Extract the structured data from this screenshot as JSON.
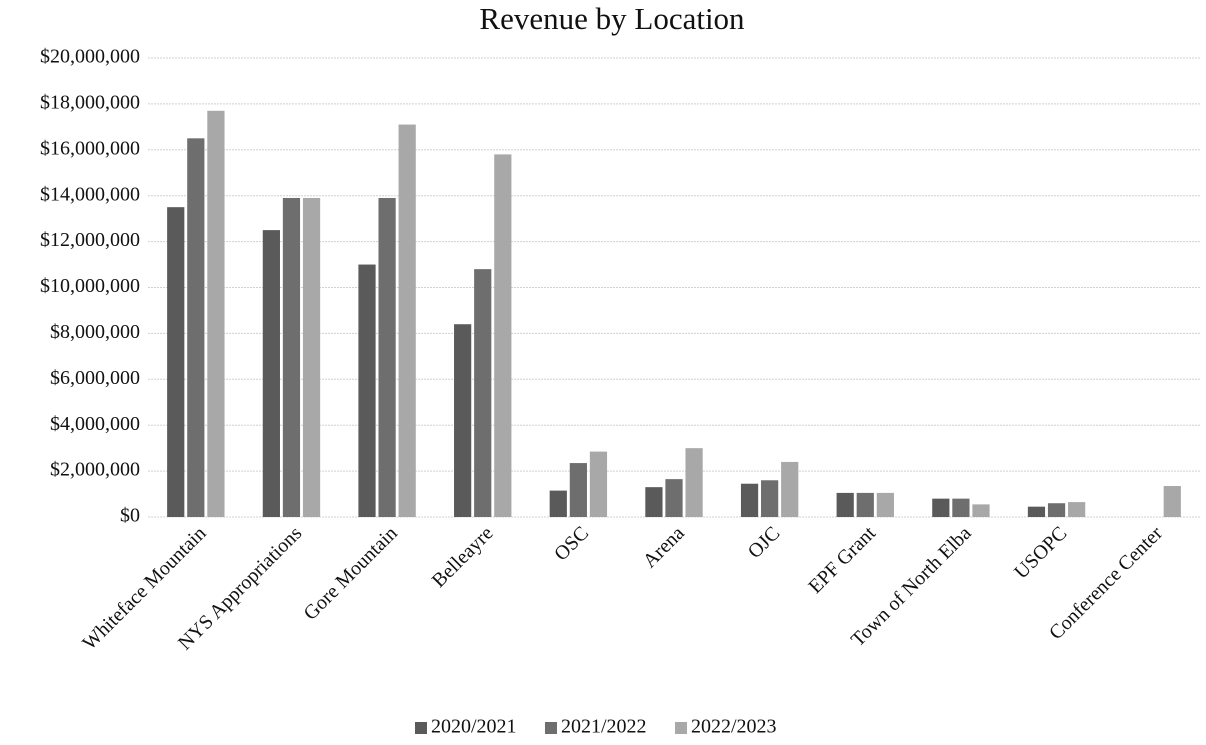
{
  "chart_data": {
    "type": "bar",
    "title": "Revenue by Location",
    "categories": [
      "Whiteface Mountain",
      "NYS Appropriations",
      "Gore Mountain",
      "Belleayre",
      "OSC",
      "Arena",
      "OJC",
      "EPF Grant",
      "Town of North Elba",
      "USOPC",
      "Conference Center"
    ],
    "series": [
      {
        "name": "2020/2021",
        "color": "#5a5a5a",
        "values": [
          13500000,
          12500000,
          11000000,
          8400000,
          1150000,
          1300000,
          1450000,
          1050000,
          800000,
          450000,
          0
        ]
      },
      {
        "name": "2021/2022",
        "color": "#6e6e6e",
        "values": [
          16500000,
          13900000,
          13900000,
          10800000,
          2350000,
          1650000,
          1600000,
          1050000,
          800000,
          600000,
          0
        ]
      },
      {
        "name": "2022/2023",
        "color": "#a8a8a8",
        "values": [
          17700000,
          13900000,
          17100000,
          15800000,
          2850000,
          3000000,
          2400000,
          1050000,
          550000,
          650000,
          1350000
        ]
      }
    ],
    "ylim": [
      0,
      20000000
    ],
    "yticks": [
      {
        "value": 0,
        "label": "$0"
      },
      {
        "value": 2000000,
        "label": "$2,000,000"
      },
      {
        "value": 4000000,
        "label": "$4,000,000"
      },
      {
        "value": 6000000,
        "label": "$6,000,000"
      },
      {
        "value": 8000000,
        "label": "$8,000,000"
      },
      {
        "value": 10000000,
        "label": "$10,000,000"
      },
      {
        "value": 12000000,
        "label": "$12,000,000"
      },
      {
        "value": 14000000,
        "label": "$14,000,000"
      },
      {
        "value": 16000000,
        "label": "$16,000,000"
      },
      {
        "value": 18000000,
        "label": "$18,000,000"
      },
      {
        "value": 20000000,
        "label": "$20,000,000"
      }
    ],
    "grid": true,
    "legend": "bottom"
  }
}
